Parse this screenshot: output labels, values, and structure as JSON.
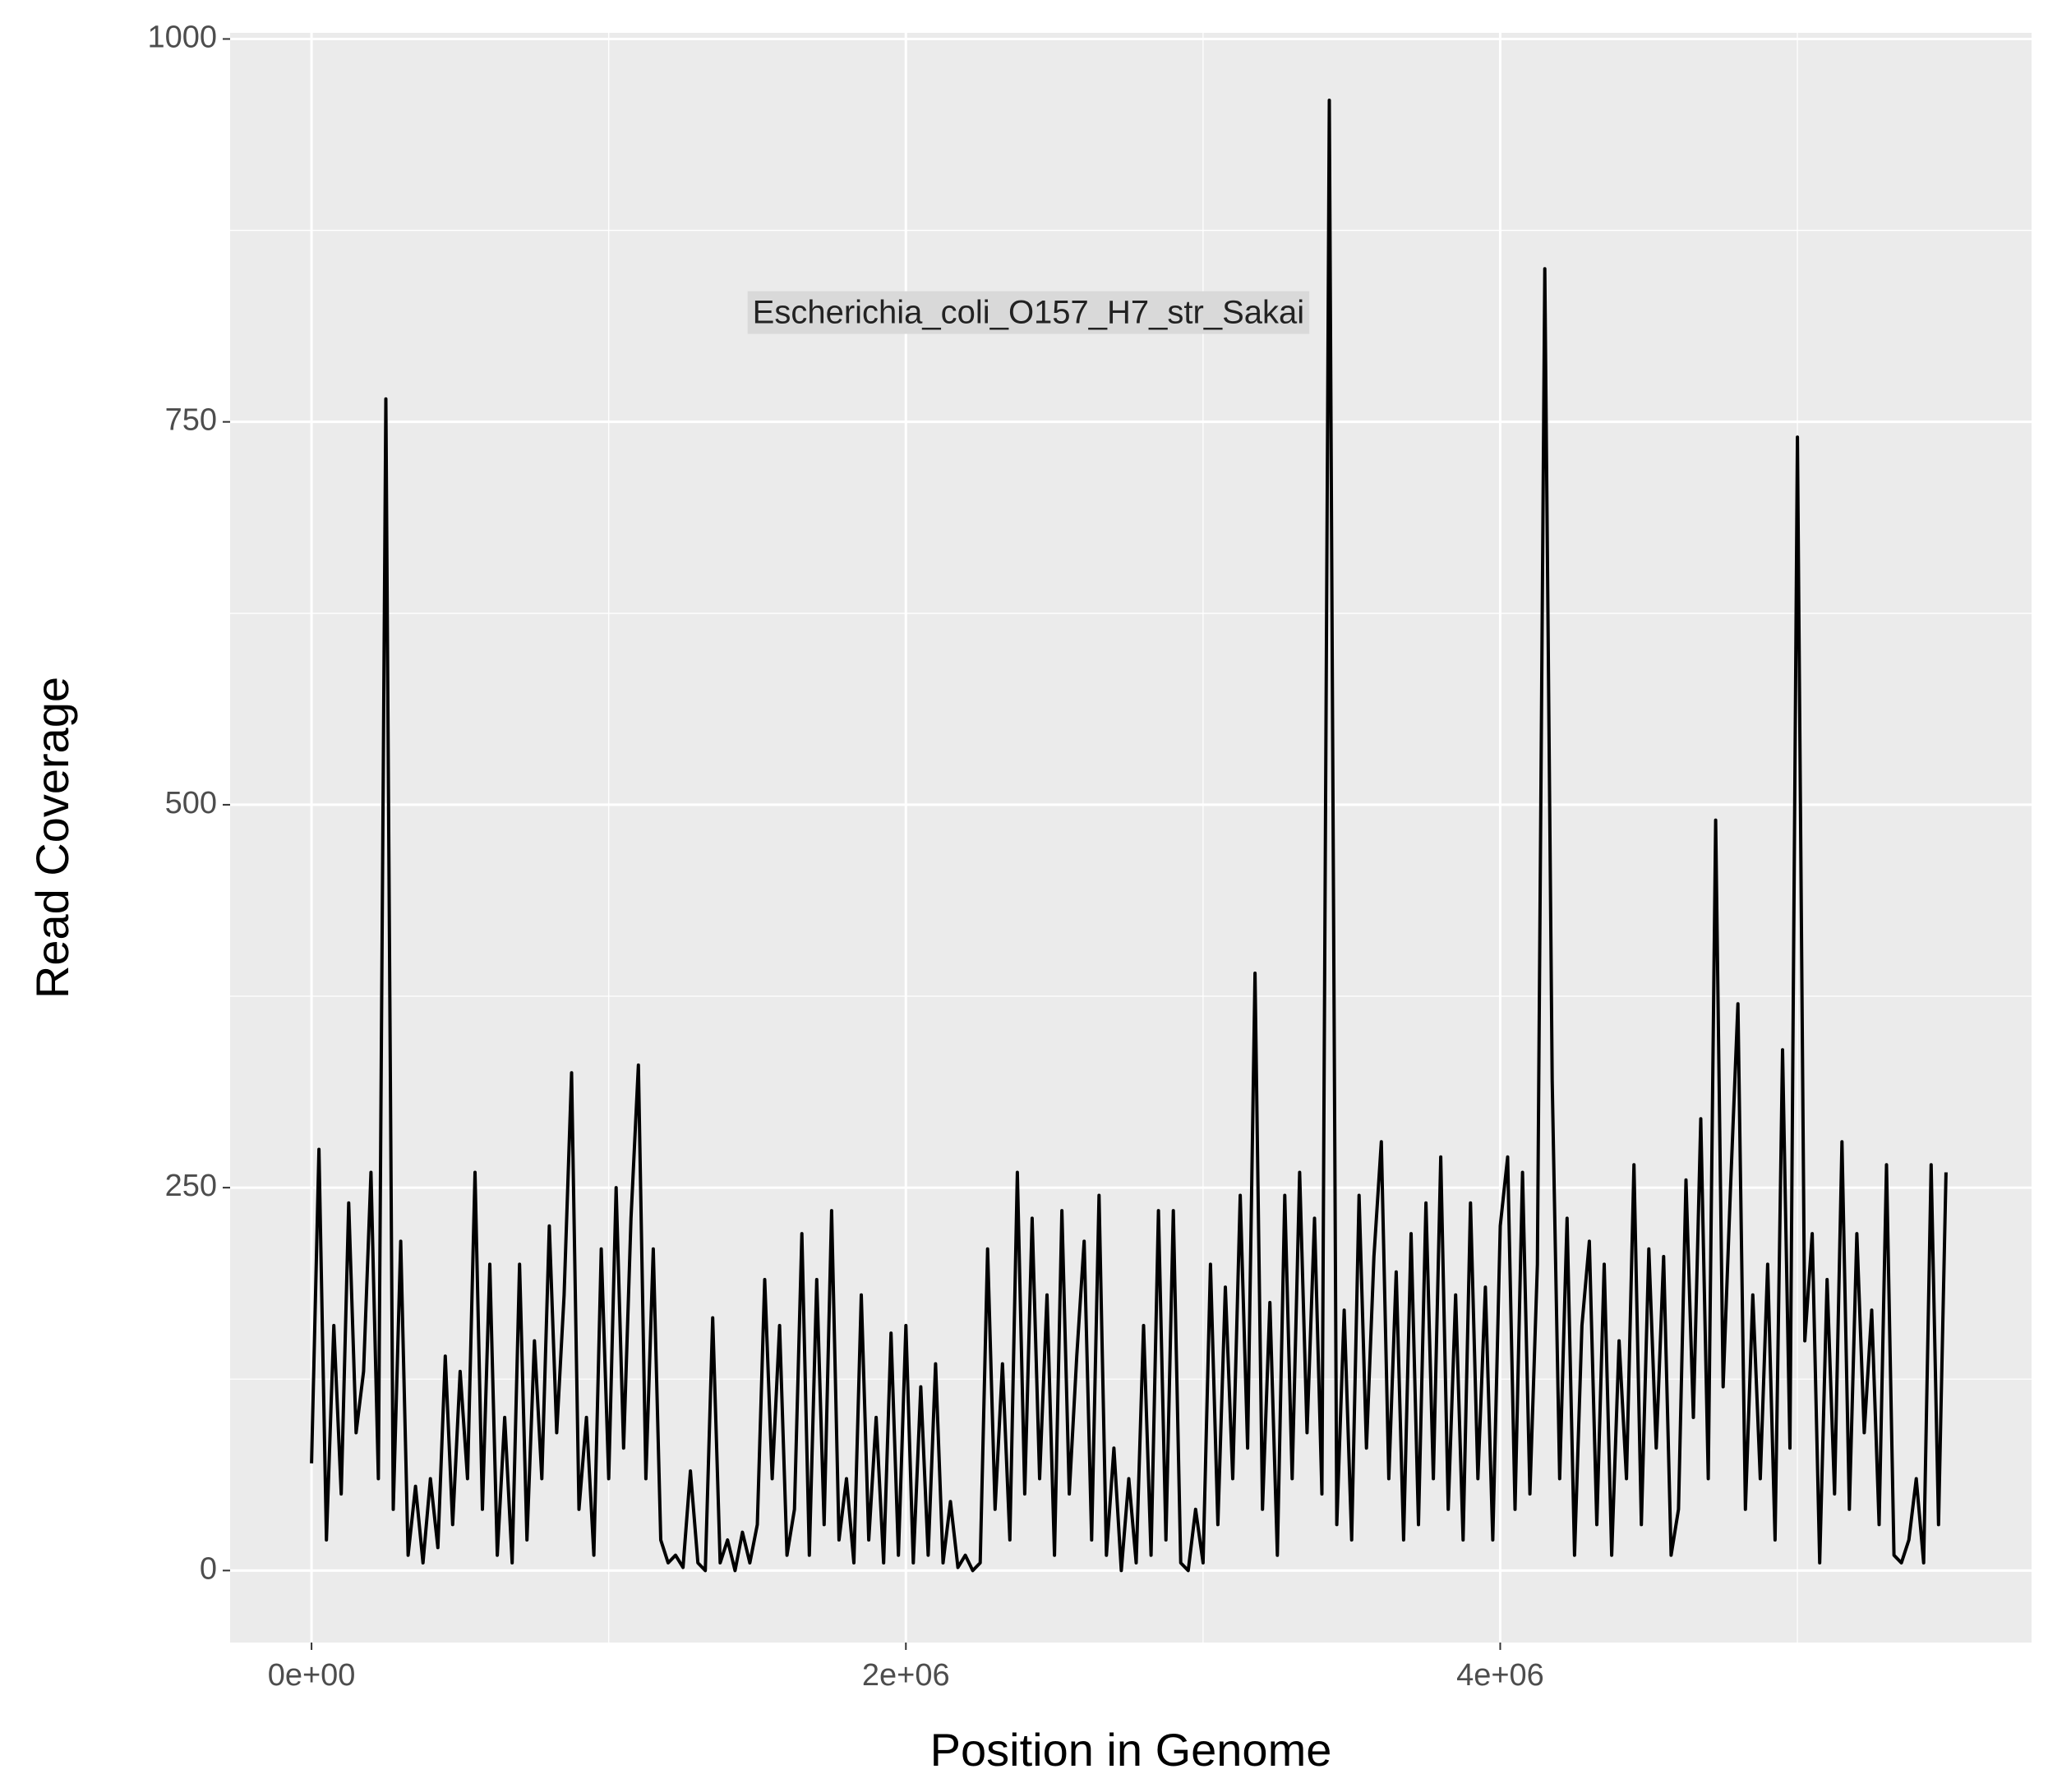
{
  "chart_data": {
    "type": "line",
    "annotation": "Escherichia_coli_O157_H7_str_Sakai",
    "x_label": "Position in Genome",
    "y_label": "Read Coverage",
    "color": "#000000",
    "grid": true,
    "xlim": [
      -274000,
      5788000
    ],
    "ylim": [
      -47,
      1004
    ],
    "xticks": [
      {
        "value": 0,
        "label": "0e+00"
      },
      {
        "value": 2000000,
        "label": "2e+06"
      },
      {
        "value": 4000000,
        "label": "4e+06"
      }
    ],
    "minor_xticks": [
      1000000,
      3000000,
      5000000
    ],
    "yticks": [
      0,
      250,
      500,
      750,
      1000
    ],
    "minor_yticks": [
      125,
      375,
      625,
      875
    ],
    "x": [
      0,
      25000,
      50000,
      75000,
      100000,
      125000,
      150000,
      175000,
      200000,
      225000,
      250000,
      275000,
      300000,
      325000,
      350000,
      375000,
      400000,
      425000,
      450000,
      475000,
      500000,
      525000,
      550000,
      575000,
      600000,
      625000,
      650000,
      675000,
      700000,
      725000,
      750000,
      775000,
      800000,
      825000,
      850000,
      875000,
      900000,
      925000,
      950000,
      975000,
      1000000,
      1025000,
      1050000,
      1075000,
      1100000,
      1125000,
      1150000,
      1175000,
      1200000,
      1225000,
      1250000,
      1275000,
      1300000,
      1325000,
      1350000,
      1375000,
      1400000,
      1425000,
      1450000,
      1475000,
      1500000,
      1525000,
      1550000,
      1575000,
      1600000,
      1625000,
      1650000,
      1675000,
      1700000,
      1725000,
      1750000,
      1775000,
      1800000,
      1825000,
      1850000,
      1875000,
      1900000,
      1925000,
      1950000,
      1975000,
      2000000,
      2025000,
      2050000,
      2075000,
      2100000,
      2125000,
      2150000,
      2175000,
      2200000,
      2225000,
      2250000,
      2275000,
      2300000,
      2325000,
      2350000,
      2375000,
      2400000,
      2425000,
      2450000,
      2475000,
      2500000,
      2525000,
      2550000,
      2575000,
      2600000,
      2625000,
      2650000,
      2675000,
      2700000,
      2725000,
      2750000,
      2775000,
      2800000,
      2825000,
      2850000,
      2875000,
      2900000,
      2925000,
      2950000,
      2975000,
      3000000,
      3025000,
      3050000,
      3075000,
      3100000,
      3125000,
      3150000,
      3175000,
      3200000,
      3225000,
      3250000,
      3275000,
      3300000,
      3325000,
      3350000,
      3375000,
      3400000,
      3425000,
      3450000,
      3475000,
      3500000,
      3525000,
      3550000,
      3575000,
      3600000,
      3625000,
      3650000,
      3675000,
      3700000,
      3725000,
      3750000,
      3775000,
      3800000,
      3825000,
      3850000,
      3875000,
      3900000,
      3925000,
      3950000,
      3975000,
      4000000,
      4025000,
      4050000,
      4075000,
      4100000,
      4125000,
      4150000,
      4175000,
      4200000,
      4225000,
      4250000,
      4275000,
      4300000,
      4325000,
      4350000,
      4375000,
      4400000,
      4425000,
      4450000,
      4475000,
      4500000,
      4525000,
      4550000,
      4575000,
      4600000,
      4625000,
      4650000,
      4675000,
      4700000,
      4725000,
      4750000,
      4775000,
      4800000,
      4825000,
      4850000,
      4875000,
      4900000,
      4925000,
      4950000,
      4975000,
      5000000,
      5025000,
      5050000,
      5075000,
      5100000,
      5125000,
      5150000,
      5175000,
      5200000,
      5225000,
      5250000,
      5275000,
      5300000,
      5325000,
      5350000,
      5375000,
      5400000,
      5425000,
      5450000,
      5475000,
      5500000
    ],
    "values": [
      70,
      275,
      20,
      160,
      50,
      240,
      90,
      130,
      260,
      60,
      765,
      40,
      215,
      10,
      55,
      5,
      60,
      15,
      140,
      30,
      130,
      60,
      260,
      40,
      200,
      10,
      100,
      5,
      200,
      20,
      150,
      60,
      225,
      90,
      180,
      325,
      40,
      100,
      10,
      210,
      60,
      250,
      80,
      230,
      330,
      60,
      210,
      20,
      5,
      10,
      2,
      65,
      5,
      0,
      165,
      5,
      20,
      0,
      25,
      5,
      30,
      190,
      60,
      160,
      10,
      40,
      220,
      10,
      190,
      30,
      235,
      20,
      60,
      5,
      180,
      20,
      100,
      5,
      155,
      10,
      160,
      5,
      120,
      10,
      135,
      5,
      45,
      2,
      10,
      0,
      5,
      210,
      40,
      135,
      20,
      260,
      50,
      230,
      60,
      180,
      10,
      235,
      50,
      140,
      215,
      20,
      245,
      10,
      80,
      0,
      60,
      5,
      160,
      10,
      235,
      20,
      235,
      5,
      0,
      40,
      5,
      200,
      30,
      185,
      60,
      245,
      80,
      390,
      40,
      175,
      10,
      245,
      60,
      260,
      90,
      230,
      50,
      960,
      30,
      170,
      20,
      245,
      80,
      205,
      280,
      60,
      195,
      20,
      220,
      30,
      240,
      60,
      270,
      40,
      180,
      20,
      240,
      60,
      185,
      20,
      225,
      270,
      40,
      260,
      50,
      200,
      850,
      320,
      60,
      230,
      10,
      160,
      215,
      30,
      200,
      10,
      150,
      60,
      265,
      30,
      210,
      80,
      205,
      10,
      40,
      255,
      100,
      295,
      60,
      490,
      120,
      250,
      370,
      40,
      180,
      60,
      200,
      20,
      340,
      80,
      740,
      150,
      220,
      5,
      190,
      50,
      280,
      40,
      220,
      90,
      170,
      30,
      265,
      10,
      5,
      20,
      60,
      5,
      265,
      30,
      260
    ]
  }
}
